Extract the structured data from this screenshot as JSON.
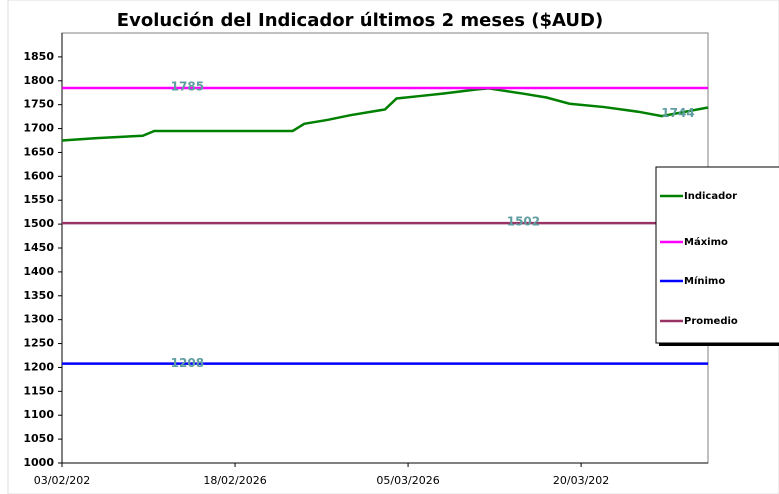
{
  "chart_data": {
    "type": "line",
    "title": "Evolución del Indicador últimos 2 meses ($AUD)",
    "x": [
      0,
      3,
      7,
      8,
      10,
      15,
      20,
      21,
      23,
      25,
      28,
      29,
      31,
      33,
      36,
      37,
      40,
      42,
      44,
      47,
      50,
      52,
      54,
      56
    ],
    "xlim": [
      0,
      56
    ],
    "xticks": [
      {
        "value": 0,
        "label": "03/02/202"
      },
      {
        "value": 15,
        "label": "18/02/2026"
      },
      {
        "value": 30,
        "label": "05/03/2026"
      },
      {
        "value": 45,
        "label": "20/03/202"
      }
    ],
    "ylim": [
      1000,
      1900
    ],
    "yticks": [
      1000,
      1050,
      1100,
      1150,
      1200,
      1250,
      1300,
      1350,
      1400,
      1450,
      1500,
      1550,
      1600,
      1650,
      1700,
      1750,
      1800,
      1850
    ],
    "grid": false,
    "legend": "right",
    "series": [
      {
        "name": "Indicador",
        "color": "#008000",
        "values": [
          1675,
          1680,
          1685,
          1695,
          1695,
          1695,
          1695,
          1710,
          1718,
          1728,
          1740,
          1763,
          1768,
          1773,
          1782,
          1784,
          1773,
          1765,
          1752,
          1745,
          1735,
          1726,
          1735,
          1744
        ]
      },
      {
        "name": "Máximo",
        "color": "#ff00ff",
        "values": [
          1785,
          1785,
          1785,
          1785,
          1785,
          1785,
          1785,
          1785,
          1785,
          1785,
          1785,
          1785,
          1785,
          1785,
          1785,
          1785,
          1785,
          1785,
          1785,
          1785,
          1785,
          1785,
          1785,
          1785
        ]
      },
      {
        "name": "Mínimo",
        "color": "#0000ff",
        "values": [
          1208,
          1208,
          1208,
          1208,
          1208,
          1208,
          1208,
          1208,
          1208,
          1208,
          1208,
          1208,
          1208,
          1208,
          1208,
          1208,
          1208,
          1208,
          1208,
          1208,
          1208,
          1208,
          1208,
          1208
        ]
      },
      {
        "name": "Promedio",
        "color": "#993366",
        "values": [
          1502,
          1502,
          1502,
          1502,
          1502,
          1502,
          1502,
          1502,
          1502,
          1502,
          1502,
          1502,
          1502,
          1502,
          1502,
          1502,
          1502,
          1502,
          1502,
          1502,
          1502,
          1502,
          1502,
          1502
        ]
      }
    ]
  }
}
